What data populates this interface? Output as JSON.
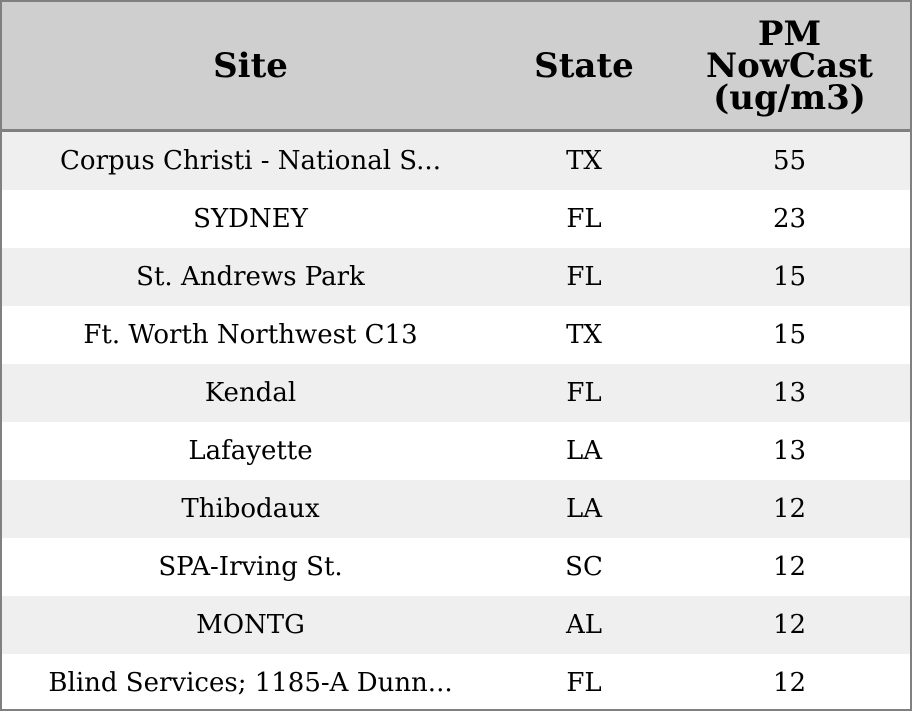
{
  "chart_data": {
    "type": "table",
    "columns": [
      "Site",
      "State",
      "PM NowCast (ug/m3)"
    ],
    "rows": [
      {
        "site": "Corpus Christi - National S...",
        "state": "TX",
        "value": 55
      },
      {
        "site": "SYDNEY",
        "state": "FL",
        "value": 23
      },
      {
        "site": "St. Andrews Park",
        "state": "FL",
        "value": 15
      },
      {
        "site": "Ft. Worth Northwest C13",
        "state": "TX",
        "value": 15
      },
      {
        "site": "Kendal",
        "state": "FL",
        "value": 13
      },
      {
        "site": "Lafayette",
        "state": "LA",
        "value": 13
      },
      {
        "site": "Thibodaux",
        "state": "LA",
        "value": 12
      },
      {
        "site": "SPA-Irving St.",
        "state": "SC",
        "value": 12
      },
      {
        "site": "MONTG",
        "state": "AL",
        "value": 12
      },
      {
        "site": "Blind Services; 1185-A Dunn...",
        "state": "FL",
        "value": 12
      }
    ]
  },
  "header": {
    "site": "Site",
    "state": "State",
    "value_line1": "PM",
    "value_line2": "NowCast",
    "value_line3": "(ug/m3)"
  },
  "colors": {
    "header_bg": "#cfcfcf",
    "row_alt_bg": "#efefef",
    "row_bg": "#ffffff",
    "border": "#808080"
  }
}
